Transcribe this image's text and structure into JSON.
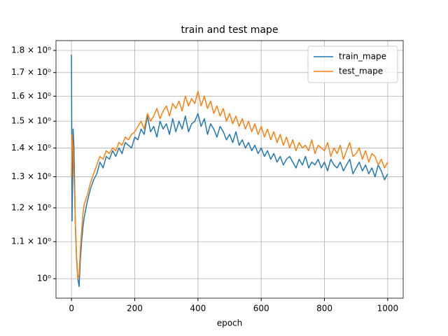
{
  "chart_data": {
    "type": "line",
    "title": "train and test mape",
    "x_label": "epoch",
    "x": [
      0,
      2,
      5,
      8,
      12,
      16,
      20,
      24,
      28,
      32,
      36,
      40,
      50,
      60,
      70,
      80,
      90,
      100,
      110,
      120,
      130,
      140,
      150,
      160,
      170,
      180,
      190,
      200,
      210,
      220,
      230,
      240,
      250,
      260,
      270,
      280,
      290,
      300,
      310,
      320,
      330,
      340,
      350,
      360,
      370,
      380,
      390,
      400,
      410,
      420,
      430,
      440,
      450,
      460,
      470,
      480,
      490,
      500,
      510,
      520,
      530,
      540,
      550,
      560,
      570,
      580,
      590,
      600,
      610,
      620,
      630,
      640,
      650,
      660,
      670,
      680,
      690,
      700,
      710,
      720,
      730,
      740,
      750,
      760,
      770,
      780,
      790,
      800,
      810,
      820,
      830,
      840,
      850,
      860,
      870,
      880,
      890,
      900,
      910,
      920,
      930,
      940,
      950,
      960,
      970,
      980,
      990,
      1000
    ],
    "series": [
      {
        "name": "train_mape",
        "color": "#1f77b4",
        "values": [
          1.78,
          1.16,
          1.47,
          1.4,
          1.15,
          1.05,
          1.0,
          0.98,
          1.05,
          1.1,
          1.14,
          1.17,
          1.22,
          1.26,
          1.29,
          1.31,
          1.35,
          1.33,
          1.37,
          1.36,
          1.39,
          1.37,
          1.4,
          1.38,
          1.42,
          1.41,
          1.4,
          1.44,
          1.43,
          1.47,
          1.45,
          1.52,
          1.46,
          1.48,
          1.44,
          1.5,
          1.47,
          1.49,
          1.45,
          1.51,
          1.46,
          1.5,
          1.47,
          1.52,
          1.46,
          1.49,
          1.5,
          1.53,
          1.48,
          1.51,
          1.45,
          1.49,
          1.47,
          1.44,
          1.48,
          1.46,
          1.43,
          1.45,
          1.42,
          1.46,
          1.41,
          1.43,
          1.4,
          1.42,
          1.39,
          1.41,
          1.38,
          1.4,
          1.37,
          1.39,
          1.36,
          1.38,
          1.35,
          1.37,
          1.34,
          1.36,
          1.37,
          1.35,
          1.33,
          1.36,
          1.34,
          1.37,
          1.33,
          1.35,
          1.34,
          1.36,
          1.33,
          1.35,
          1.32,
          1.36,
          1.34,
          1.33,
          1.35,
          1.32,
          1.34,
          1.36,
          1.31,
          1.33,
          1.35,
          1.32,
          1.34,
          1.31,
          1.33,
          1.3,
          1.34,
          1.32,
          1.29,
          1.31
        ]
      },
      {
        "name": "test_mape",
        "color": "#ff7f0e",
        "values": [
          1.3,
          1.45,
          1.4,
          1.3,
          1.16,
          1.06,
          1.0,
          1.01,
          1.08,
          1.13,
          1.18,
          1.21,
          1.24,
          1.28,
          1.31,
          1.34,
          1.37,
          1.36,
          1.39,
          1.38,
          1.4,
          1.39,
          1.42,
          1.41,
          1.44,
          1.43,
          1.45,
          1.46,
          1.48,
          1.5,
          1.47,
          1.53,
          1.5,
          1.52,
          1.55,
          1.51,
          1.54,
          1.56,
          1.52,
          1.57,
          1.55,
          1.58,
          1.54,
          1.6,
          1.56,
          1.59,
          1.57,
          1.62,
          1.56,
          1.6,
          1.55,
          1.58,
          1.53,
          1.56,
          1.52,
          1.55,
          1.5,
          1.53,
          1.49,
          1.52,
          1.48,
          1.51,
          1.47,
          1.5,
          1.46,
          1.49,
          1.45,
          1.48,
          1.44,
          1.47,
          1.43,
          1.46,
          1.42,
          1.45,
          1.41,
          1.44,
          1.4,
          1.43,
          1.39,
          1.42,
          1.4,
          1.41,
          1.39,
          1.43,
          1.38,
          1.41,
          1.4,
          1.39,
          1.42,
          1.37,
          1.4,
          1.38,
          1.41,
          1.36,
          1.39,
          1.42,
          1.37,
          1.38,
          1.4,
          1.36,
          1.39,
          1.35,
          1.38,
          1.37,
          1.34,
          1.36,
          1.33,
          1.35
        ]
      }
    ],
    "xlim": [
      -49,
      1049
    ],
    "xticks": [
      0,
      200,
      400,
      600,
      800,
      1000
    ],
    "ylim": [
      0.951,
      1.846
    ],
    "log_y": true,
    "yticks": [
      {
        "value": 1,
        "label": "10⁰"
      },
      {
        "value": 1.1,
        "label": "1.1 × 10⁰"
      },
      {
        "value": 1.2,
        "label": "1.2 × 10⁰"
      },
      {
        "value": 1.3,
        "label": "1.3 × 10⁰"
      },
      {
        "value": 1.4,
        "label": "1.4 × 10⁰"
      },
      {
        "value": 1.5,
        "label": "1.5 × 10⁰"
      },
      {
        "value": 1.6,
        "label": "1.6 × 10⁰"
      },
      {
        "value": 1.7,
        "label": "1.7 × 10⁰"
      },
      {
        "value": 1.8,
        "label": "1.8 × 10⁰"
      }
    ],
    "grid": true,
    "legend": "upper right"
  }
}
